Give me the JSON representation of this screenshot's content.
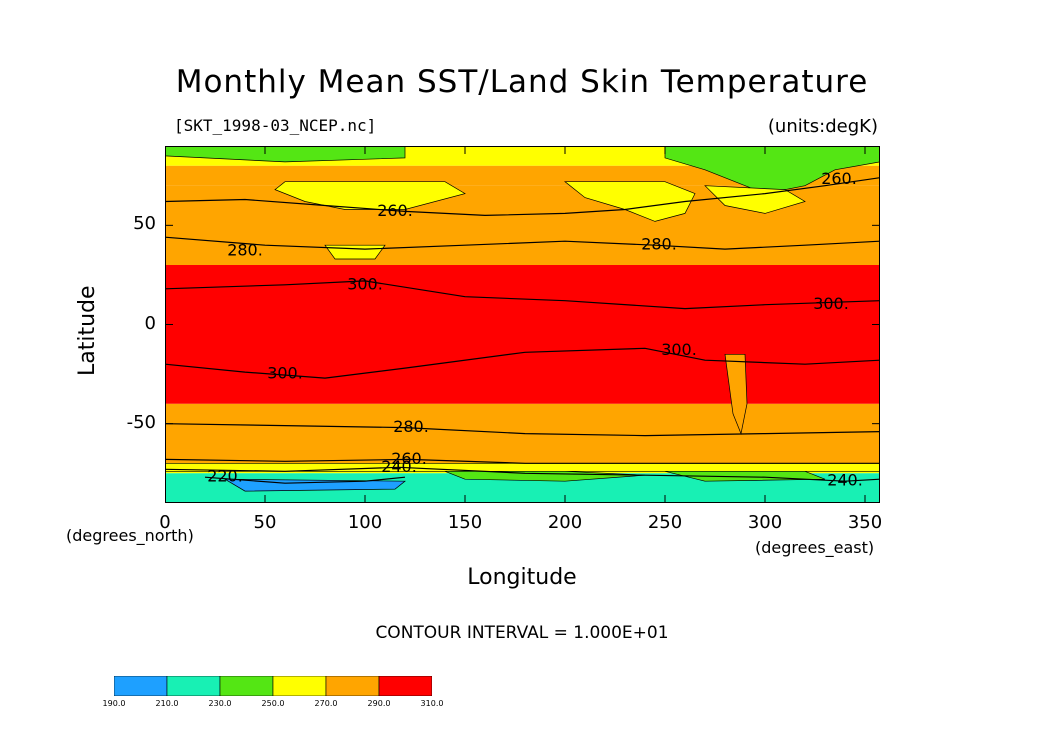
{
  "chart_data": {
    "type": "heatmap",
    "title": "Monthly Mean SST/Land Skin Temperature",
    "file_label": "[SKT_1998-03_NCEP.nc]",
    "units_label": "(units:degK)",
    "xlabel": "Longitude",
    "ylabel": "Latitude",
    "x_unit": "(degrees_east)",
    "y_unit": "(degrees_north)",
    "xlim": [
      0,
      357.5
    ],
    "ylim": [
      -90,
      90
    ],
    "x_ticks": [
      "0",
      "50",
      "100",
      "150",
      "200",
      "250",
      "300",
      "350"
    ],
    "x_tick_values": [
      0,
      50,
      100,
      150,
      200,
      250,
      300,
      350
    ],
    "y_ticks": [
      "50",
      "0",
      "-50"
    ],
    "y_tick_values": [
      50,
      0,
      -50
    ],
    "contour_interval_label": "CONTOUR INTERVAL = 1.000E+01",
    "contour_labels": [
      {
        "text": "260.",
        "lon": 115,
        "lat": 57
      },
      {
        "text": "280.",
        "lon": 40,
        "lat": 37
      },
      {
        "text": "300.",
        "lon": 100,
        "lat": 20
      },
      {
        "text": "280.",
        "lon": 247,
        "lat": 40
      },
      {
        "text": "260.",
        "lon": 337,
        "lat": 73
      },
      {
        "text": "300.",
        "lon": 333,
        "lat": 10
      },
      {
        "text": "300.",
        "lon": 257,
        "lat": -13
      },
      {
        "text": "300.",
        "lon": 60,
        "lat": -25
      },
      {
        "text": "280.",
        "lon": 123,
        "lat": -52
      },
      {
        "text": "260.",
        "lon": 122,
        "lat": -68
      },
      {
        "text": "240.",
        "lon": 117,
        "lat": -72
      },
      {
        "text": "220.",
        "lon": 30,
        "lat": -77
      },
      {
        "text": "240.",
        "lon": 340,
        "lat": -79
      }
    ],
    "zonal_bands": [
      {
        "lat_from": 90,
        "lat_to": 80,
        "level": "250-270"
      },
      {
        "lat_from": 80,
        "lat_to": 70,
        "level": "270-290"
      },
      {
        "lat_from": 70,
        "lat_to": 60,
        "level": "270-290"
      },
      {
        "lat_from": 60,
        "lat_to": 30,
        "level": "270-290"
      },
      {
        "lat_from": 30,
        "lat_to": -40,
        "level": "290-310"
      },
      {
        "lat_from": -40,
        "lat_to": -70,
        "level": "270-290"
      },
      {
        "lat_from": -70,
        "lat_to": -75,
        "level": "250-270"
      },
      {
        "lat_from": -75,
        "lat_to": -90,
        "level": "210-230"
      }
    ],
    "colorbar": {
      "levels": [
        "190.0",
        "210.0",
        "230.0",
        "250.0",
        "270.0",
        "290.0",
        "310.0"
      ],
      "colors": [
        "#1ea0ff",
        "#18f0b4",
        "#54e614",
        "#ffff00",
        "#ffa500",
        "#ff0000"
      ]
    },
    "grid": false
  }
}
